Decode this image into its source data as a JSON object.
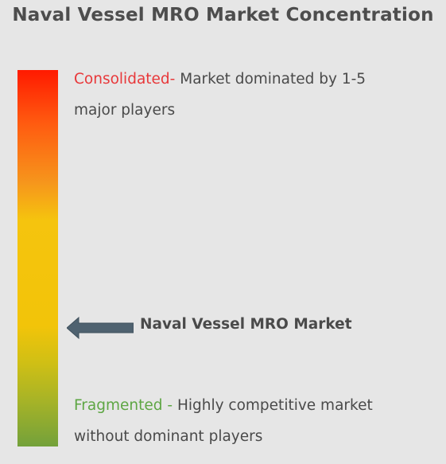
{
  "title": "Naval Vessel MRO Market Concentration",
  "scale": {
    "top": {
      "keyword": "Consolidated",
      "separator": "- ",
      "description": "Market dominated by 1-5 major players"
    },
    "bottom": {
      "keyword": "Fragmented",
      "separator": " - ",
      "description": "Highly competitive market without dominant players"
    },
    "marker": {
      "label": "Naval Vessel MRO Market",
      "position_fraction_from_top": 0.68
    }
  },
  "colors": {
    "top": "#ff1a00",
    "middle": "#f5c40e",
    "bottom": "#73a13b",
    "consolidated_text": "#e8383a",
    "fragmented_text": "#5ea644",
    "arrow": "#4f6270"
  }
}
